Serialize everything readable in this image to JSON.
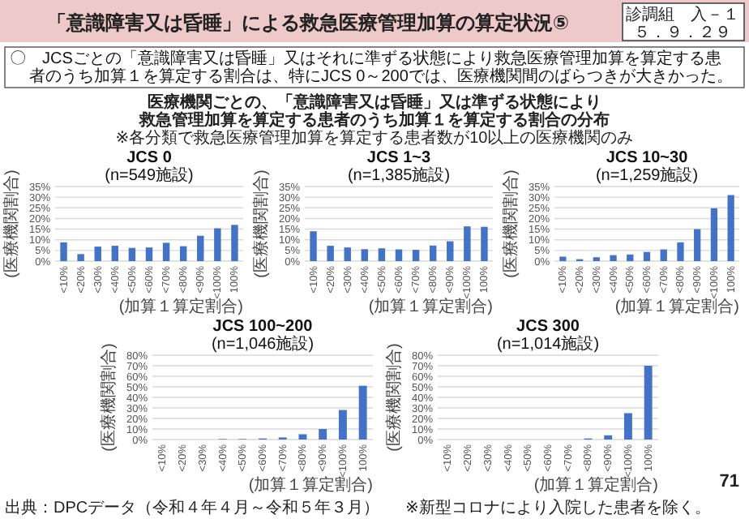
{
  "chart_data": [
    {
      "type": "other",
      "title": "「意識障害又は昏睡」による救急医療管理加算の算定状況⑤",
      "annotations": [
        "診調組　入－１",
        "５．９．２９",
        "〇　JCSごとの「意識障害又は昏睡」又はそれに準ずる状態により救急医療管理加算を算定する患者のうち加算１を算定する割合は、特にJCS 0～200では、医療機関間のばらつきが大きかった。",
        "医療機関ごとの、「意識障害又は昏睡」又は準ずる状態により",
        "救急管理加算を算定する患者のうち加算１を算定する割合の分布",
        "※各分類で救急医療管理加算を算定する患者数が10以上の医療機関のみ",
        "出典：DPCデータ（令和４年４月～令和５年３月）",
        "※新型コロナにより入院した患者を除く。",
        "71"
      ]
    },
    {
      "type": "bar",
      "title": "JCS 0",
      "subtitle": "(n=549施設)",
      "ylabel": "(医療機関割合)",
      "xlabel": "(加算１算定割合)",
      "categories": [
        "<10%",
        "<20%",
        "<30%",
        "<40%",
        "<50%",
        "<60%",
        "<70%",
        "<80%",
        "<90%",
        "<100%",
        "100%"
      ],
      "values": [
        8.8,
        3.3,
        6.8,
        7.2,
        6.2,
        6.4,
        8.6,
        7.0,
        11.9,
        15.4,
        17.0
      ],
      "color": "#4472c4",
      "ylim": [
        0,
        35
      ],
      "yticks": [
        {
          "value": 0,
          "label": "0%"
        },
        {
          "value": 5,
          "label": "5%"
        },
        {
          "value": 10,
          "label": "10%"
        },
        {
          "value": 15,
          "label": "15%"
        },
        {
          "value": 20,
          "label": "20%"
        },
        {
          "value": 25,
          "label": "25%"
        },
        {
          "value": 30,
          "label": "30%"
        },
        {
          "value": 35,
          "label": "35%"
        }
      ],
      "grid": "y"
    },
    {
      "type": "bar",
      "title": "JCS 1~3",
      "subtitle": "(n=1,385施設)",
      "ylabel": "(医療機関割合)",
      "xlabel": "(加算１算定割合)",
      "categories": [
        "<10%",
        "<20%",
        "<30%",
        "<40%",
        "<50%",
        "<60%",
        "<70%",
        "<80%",
        "<90%",
        "<100%",
        "100%"
      ],
      "values": [
        14.0,
        7.2,
        6.4,
        5.6,
        6.0,
        5.5,
        5.3,
        7.3,
        9.3,
        16.3,
        16.1
      ],
      "color": "#4472c4",
      "ylim": [
        0,
        35
      ],
      "yticks": [
        {
          "value": 0,
          "label": "0%"
        },
        {
          "value": 5,
          "label": "5%"
        },
        {
          "value": 10,
          "label": "10%"
        },
        {
          "value": 15,
          "label": "15%"
        },
        {
          "value": 20,
          "label": "20%"
        },
        {
          "value": 25,
          "label": "25%"
        },
        {
          "value": 30,
          "label": "30%"
        },
        {
          "value": 35,
          "label": "35%"
        }
      ],
      "grid": "y"
    },
    {
      "type": "bar",
      "title": "JCS 10~30",
      "subtitle": "(n=1,259施設)",
      "ylabel": "(医療機関割合)",
      "xlabel": "(加算１算定割合)",
      "categories": [
        "<10%",
        "<20%",
        "<30%",
        "<40%",
        "<50%",
        "<60%",
        "<70%",
        "<80%",
        "<90%",
        "<100%",
        "100%"
      ],
      "values": [
        2.1,
        0.9,
        1.8,
        2.8,
        3.1,
        4.3,
        5.5,
        8.8,
        15.0,
        24.8,
        31.0
      ],
      "color": "#4472c4",
      "ylim": [
        0,
        35
      ],
      "yticks": [
        {
          "value": 0,
          "label": "0%"
        },
        {
          "value": 5,
          "label": "5%"
        },
        {
          "value": 10,
          "label": "10%"
        },
        {
          "value": 15,
          "label": "15%"
        },
        {
          "value": 20,
          "label": "20%"
        },
        {
          "value": 25,
          "label": "25%"
        },
        {
          "value": 30,
          "label": "30%"
        },
        {
          "value": 35,
          "label": "35%"
        }
      ],
      "grid": "y"
    },
    {
      "type": "bar",
      "title": "JCS 100~200",
      "subtitle": "(n=1,046施設)",
      "ylabel": "(医療機関割合)",
      "xlabel": "(加算１算定割合)",
      "categories": [
        "<10%",
        "<20%",
        "<30%",
        "<40%",
        "<50%",
        "<60%",
        "<70%",
        "<80%",
        "<90%",
        "<100%",
        "100%"
      ],
      "values": [
        0,
        0,
        0,
        0.5,
        0.5,
        1,
        2,
        5,
        10,
        28,
        51
      ],
      "color": "#4472c4",
      "ylim": [
        0,
        80
      ],
      "yticks": [
        {
          "value": 0,
          "label": "0%"
        },
        {
          "value": 10,
          "label": "10%"
        },
        {
          "value": 20,
          "label": "20%"
        },
        {
          "value": 30,
          "label": "30%"
        },
        {
          "value": 40,
          "label": "40%"
        },
        {
          "value": 50,
          "label": "50%"
        },
        {
          "value": 60,
          "label": "60%"
        },
        {
          "value": 70,
          "label": "70%"
        },
        {
          "value": 80,
          "label": "80%"
        }
      ],
      "grid": "y"
    },
    {
      "type": "bar",
      "title": "JCS 300",
      "subtitle": "(n=1,014施設)",
      "ylabel": "(医療機関割合)",
      "xlabel": "(加算１算定割合)",
      "categories": [
        "<10%",
        "<20%",
        "<30%",
        "<40%",
        "<50%",
        "<60%",
        "<70%",
        "<80%",
        "<90%",
        "<100%",
        "100%"
      ],
      "values": [
        0,
        0,
        0,
        0,
        0,
        0,
        0,
        1,
        4,
        25,
        70
      ],
      "color": "#4472c4",
      "ylim": [
        0,
        80
      ],
      "yticks": [
        {
          "value": 0,
          "label": "0%"
        },
        {
          "value": 10,
          "label": "10%"
        },
        {
          "value": 20,
          "label": "20%"
        },
        {
          "value": 30,
          "label": "30%"
        },
        {
          "value": 40,
          "label": "40%"
        },
        {
          "value": 50,
          "label": "50%"
        },
        {
          "value": 60,
          "label": "60%"
        },
        {
          "value": 70,
          "label": "70%"
        },
        {
          "value": 80,
          "label": "80%"
        }
      ],
      "grid": "y"
    }
  ]
}
